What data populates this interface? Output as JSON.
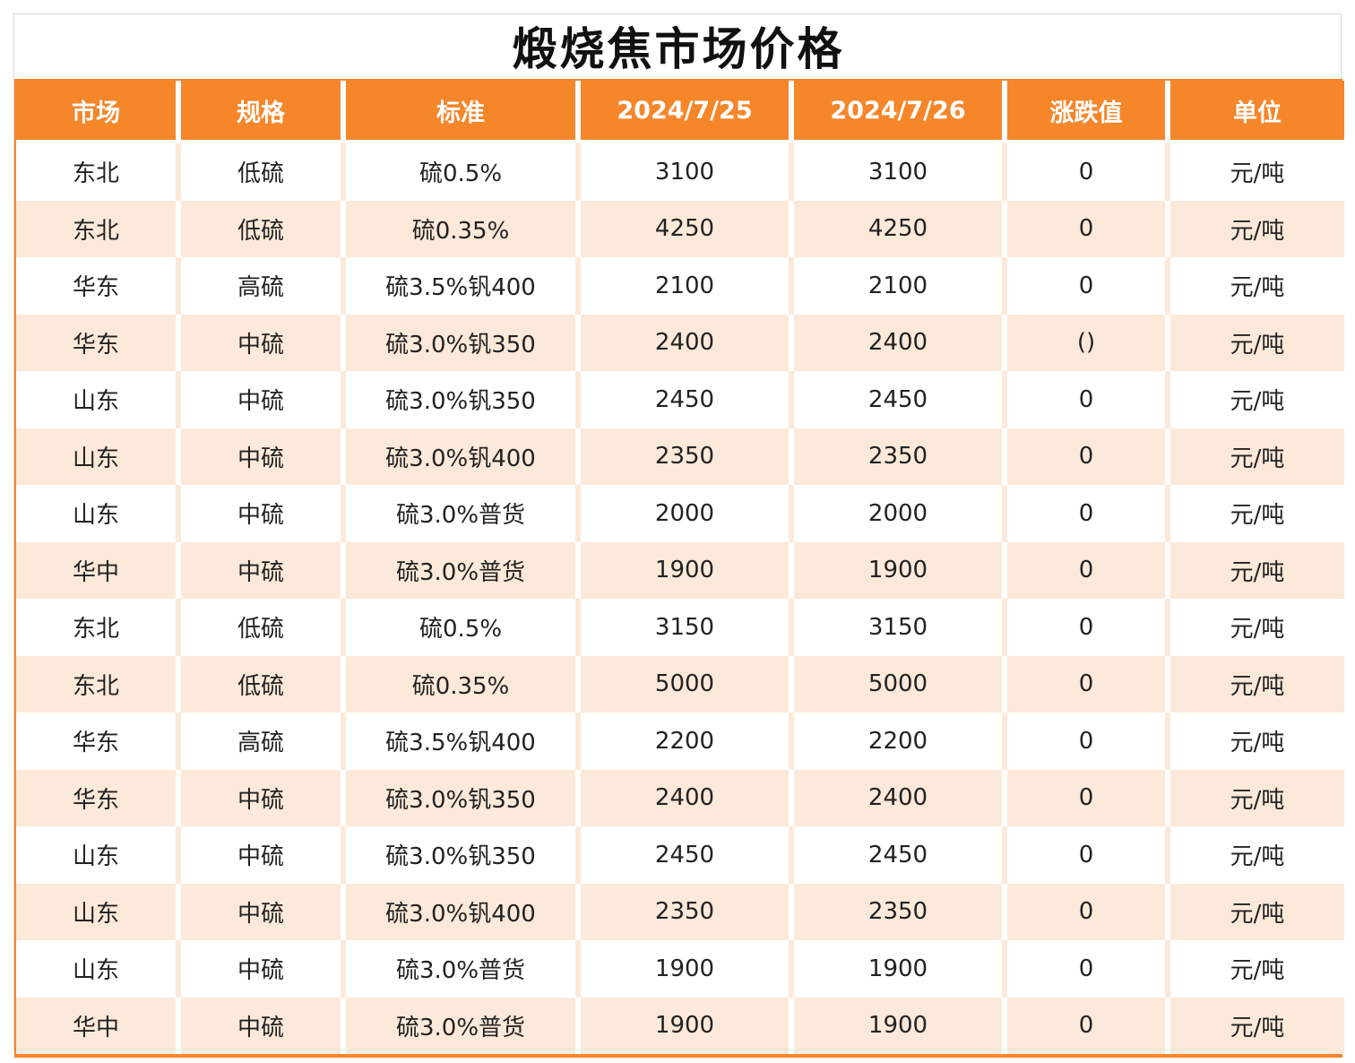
{
  "title": "煅烧焦市场价格",
  "table": {
    "headers": [
      "市场",
      "规格",
      "标准",
      "2024/7/25",
      "2024/7/26",
      "涨跌值",
      "单位"
    ],
    "rows": [
      [
        "东北",
        "低硫",
        "硫0.5%",
        "3100",
        "3100",
        "0",
        "元/吨"
      ],
      [
        "东北",
        "低硫",
        "硫0.35%",
        "4250",
        "4250",
        "0",
        "元/吨"
      ],
      [
        "华东",
        "高硫",
        "硫3.5%钒400",
        "2100",
        "2100",
        "0",
        "元/吨"
      ],
      [
        "华东",
        "中硫",
        "硫3.0%钒350",
        "2400",
        "2400",
        "()",
        "元/吨"
      ],
      [
        "山东",
        "中硫",
        "硫3.0%钒350",
        "2450",
        "2450",
        "0",
        "元/吨"
      ],
      [
        "山东",
        "中硫",
        "硫3.0%钒400",
        "2350",
        "2350",
        "0",
        "元/吨"
      ],
      [
        "山东",
        "中硫",
        "硫3.0%普货",
        "2000",
        "2000",
        "0",
        "元/吨"
      ],
      [
        "华中",
        "中硫",
        "硫3.0%普货",
        "1900",
        "1900",
        "0",
        "元/吨"
      ],
      [
        "东北",
        "低硫",
        "硫0.5%",
        "3150",
        "3150",
        "0",
        "元/吨"
      ],
      [
        "东北",
        "低硫",
        "硫0.35%",
        "5000",
        "5000",
        "0",
        "元/吨"
      ],
      [
        "华东",
        "高硫",
        "硫3.5%钒400",
        "2200",
        "2200",
        "0",
        "元/吨"
      ],
      [
        "华东",
        "中硫",
        "硫3.0%钒350",
        "2400",
        "2400",
        "0",
        "元/吨"
      ],
      [
        "山东",
        "中硫",
        "硫3.0%钒350",
        "2450",
        "2450",
        "0",
        "元/吨"
      ],
      [
        "山东",
        "中硫",
        "硫3.0%钒400",
        "2350",
        "2350",
        "0",
        "元/吨"
      ],
      [
        "山东",
        "中硫",
        "硫3.0%普货",
        "1900",
        "1900",
        "0",
        "元/吨"
      ],
      [
        "华中",
        "中硫",
        "硫3.0%普货",
        "1900",
        "1900",
        "0",
        "元/吨"
      ]
    ]
  },
  "colors": {
    "header_bg": "#f5862a",
    "stripe_bg": "#fde9d9",
    "header_text": "#ffffff"
  }
}
